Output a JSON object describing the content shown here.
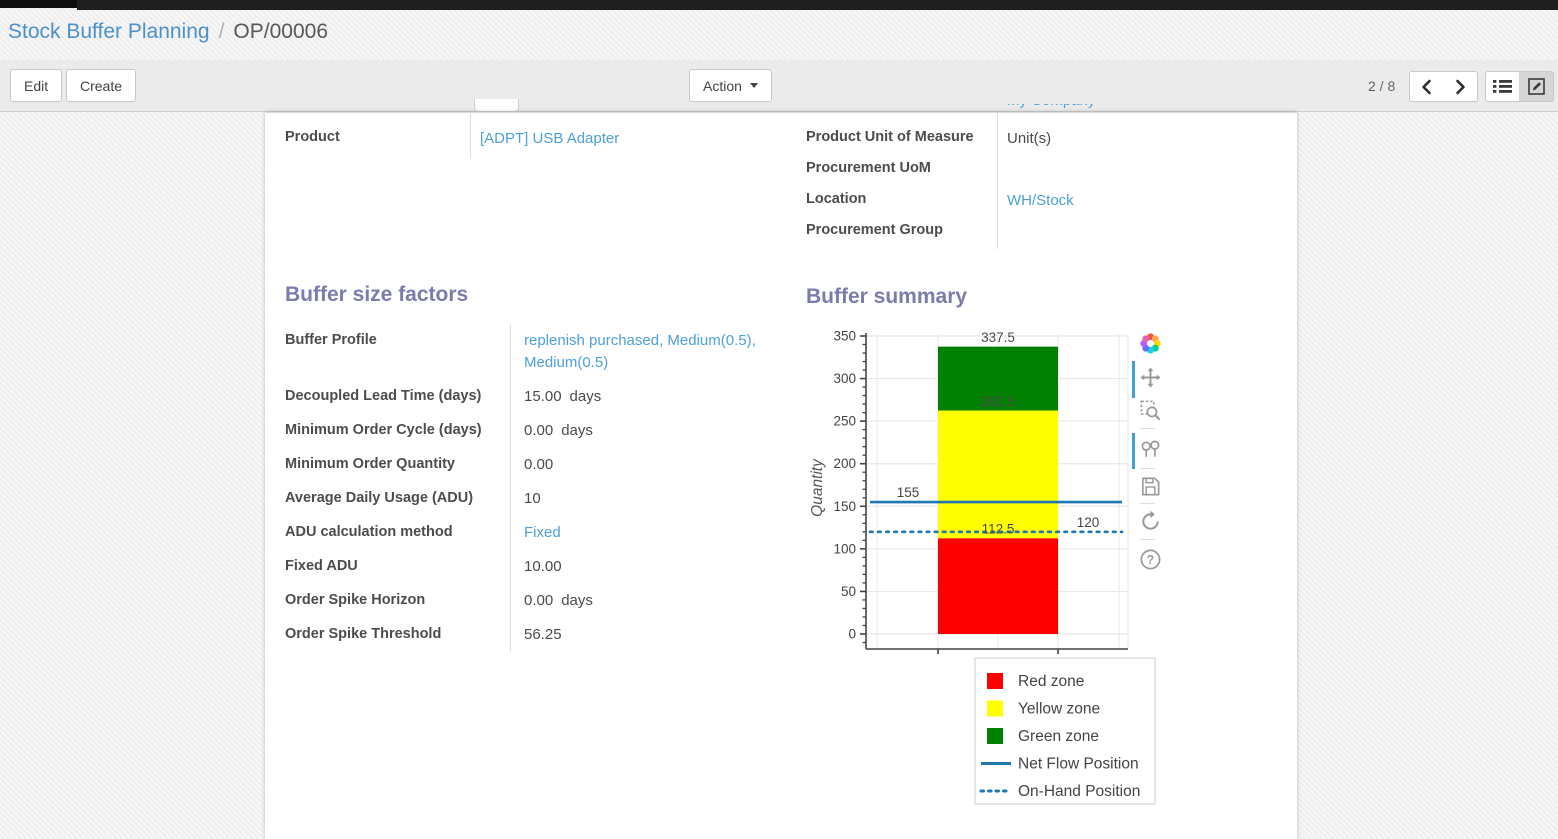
{
  "breadcrumb": {
    "section": "Stock Buffer Planning",
    "separator": "/",
    "record": "OP/00006"
  },
  "control_panel": {
    "edit_label": "Edit",
    "create_label": "Create",
    "action_label": "Action",
    "pager_value": "2 / 8"
  },
  "colors": {
    "heading": "#7c7bad",
    "link": "#4da0d8",
    "breadcrumb_link": "#4a90cb",
    "accent_active": "#41a0d8",
    "red_zone": "#ff0000",
    "yellow_zone": "#ffff00",
    "green_zone": "#008000",
    "flow_line": "#1f77b4"
  },
  "form": {
    "clipped_value": "My Company",
    "header_left": [
      {
        "label": "Product",
        "value": "[ADPT] USB Adapter",
        "link": true
      }
    ],
    "header_right": [
      {
        "label": "Product Unit of Measure",
        "value": "Unit(s)",
        "link": false
      },
      {
        "label": "Procurement UoM",
        "value": "",
        "link": false
      },
      {
        "label": "Location",
        "value": "WH/Stock",
        "link": true
      },
      {
        "label": "Procurement Group",
        "value": "",
        "link": false
      }
    ],
    "sections": {
      "buffer_size_factors": {
        "title": "Buffer size factors",
        "fields": [
          {
            "label": "Buffer Profile",
            "value": "replenish purchased, Medium(0.5), Medium(0.5)",
            "link": true
          },
          {
            "label": "Decoupled Lead Time (days)",
            "value": "15.00",
            "suffix": "days"
          },
          {
            "label": "Minimum Order Cycle (days)",
            "value": "0.00",
            "suffix": "days"
          },
          {
            "label": "Minimum Order Quantity",
            "value": "0.00"
          },
          {
            "label": "Average Daily Usage (ADU)",
            "value": "10"
          },
          {
            "label": "ADU calculation method",
            "value": "Fixed",
            "link": true
          },
          {
            "label": "Fixed ADU",
            "value": "10.00"
          },
          {
            "label": "Order Spike Horizon",
            "value": "0.00",
            "suffix": "days"
          },
          {
            "label": "Order Spike Threshold",
            "value": "56.25"
          }
        ]
      },
      "buffer_summary": {
        "title": "Buffer summary"
      }
    }
  },
  "chart_data": {
    "type": "bar",
    "stacked": true,
    "categories": [
      ""
    ],
    "series": [
      {
        "name": "Red zone",
        "color": "#ff0000",
        "values": [
          112.5
        ]
      },
      {
        "name": "Yellow zone",
        "color": "#ffff00",
        "values": [
          150
        ]
      },
      {
        "name": "Green zone",
        "color": "#008000",
        "values": [
          75
        ]
      }
    ],
    "segment_top_labels": [
      "112.5",
      "262.5",
      "337.5"
    ],
    "hlines": [
      {
        "name": "Net Flow Position",
        "y": 155,
        "style": "solid",
        "color": "#1f77b4",
        "label": "155",
        "label_side": "left"
      },
      {
        "name": "On-Hand Position",
        "y": 120,
        "style": "dotted",
        "color": "#1f77b4",
        "label": "120",
        "label_side": "right"
      }
    ],
    "title": "",
    "xlabel": "",
    "ylabel": "Quantity",
    "ylim": [
      -18,
      354
    ],
    "yticks": [
      0,
      50,
      100,
      150,
      200,
      250,
      300,
      350
    ],
    "minor_tick_step": 10,
    "grid": true,
    "legend_position": "below-right",
    "legend": [
      {
        "label": "Red zone",
        "swatch": "square",
        "color": "#ff0000"
      },
      {
        "label": "Yellow zone",
        "swatch": "square",
        "color": "#ffff00"
      },
      {
        "label": "Green zone",
        "swatch": "square",
        "color": "#008000"
      },
      {
        "label": "Net Flow Position",
        "swatch": "line",
        "color": "#1f77b4"
      },
      {
        "label": "On-Hand Position",
        "swatch": "dotted-line",
        "color": "#1f77b4"
      }
    ]
  },
  "chart_modebar": {
    "icons": [
      "plotly-logo",
      "pan",
      "zoom-box",
      "compare-hover",
      "save",
      "reset-axes",
      "help"
    ]
  }
}
